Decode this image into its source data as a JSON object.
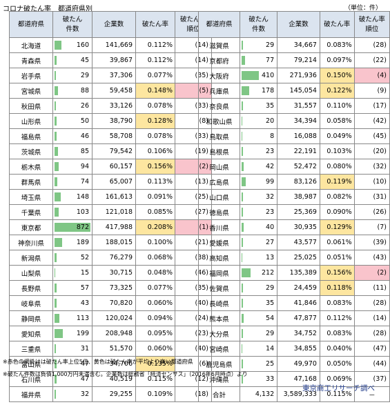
{
  "title": "コロナ破たん率　都道府県別",
  "unit": "（単位：件）",
  "headers": {
    "pref": "都道府県",
    "count_line1": "破たん",
    "count_line2": "件数",
    "companies": "企業数",
    "rate": "破たん率",
    "rank_line1": "破たん率",
    "rank_line2": "順位"
  },
  "colors": {
    "bar": "#7fc685",
    "yellow": "#fde6a0",
    "pink": "#f9c4cc",
    "header_bg": "#dbe4ef"
  },
  "left_rows": [
    {
      "pref": "北海道",
      "count": "160",
      "companies": "141,669",
      "rate": "0.112%",
      "rank": "(14)",
      "hl": ""
    },
    {
      "pref": "青森県",
      "count": "45",
      "companies": "39,867",
      "rate": "0.112%",
      "rank": "(14)",
      "hl": ""
    },
    {
      "pref": "岩手県",
      "count": "29",
      "companies": "37,306",
      "rate": "0.077%",
      "rank": "(35)",
      "hl": ""
    },
    {
      "pref": "宮城県",
      "count": "88",
      "companies": "59,458",
      "rate": "0.148%",
      "rank": "(5)",
      "hl": "hy"
    },
    {
      "pref": "秋田県",
      "count": "26",
      "companies": "33,126",
      "rate": "0.078%",
      "rank": "(33)",
      "hl": ""
    },
    {
      "pref": "山形県",
      "count": "50",
      "companies": "38,790",
      "rate": "0.128%",
      "rank": "(8)",
      "hl": "y"
    },
    {
      "pref": "福島県",
      "count": "46",
      "companies": "58,708",
      "rate": "0.078%",
      "rank": "(33)",
      "hl": ""
    },
    {
      "pref": "茨城県",
      "count": "85",
      "companies": "79,542",
      "rate": "0.106%",
      "rank": "(19)",
      "hl": ""
    },
    {
      "pref": "栃木県",
      "count": "94",
      "companies": "60,157",
      "rate": "0.156%",
      "rank": "(2)",
      "hl": "hy"
    },
    {
      "pref": "群馬県",
      "count": "74",
      "companies": "65,007",
      "rate": "0.113%",
      "rank": "(13)",
      "hl": ""
    },
    {
      "pref": "埼玉県",
      "count": "148",
      "companies": "161,613",
      "rate": "0.091%",
      "rank": "(25)",
      "hl": ""
    },
    {
      "pref": "千葉県",
      "count": "103",
      "companies": "121,018",
      "rate": "0.085%",
      "rank": "(27)",
      "hl": ""
    },
    {
      "pref": "東京都",
      "count": "872",
      "companies": "417,988",
      "rate": "0.208%",
      "rank": "(1)",
      "hl": "hy"
    },
    {
      "pref": "神奈川県",
      "count": "189",
      "companies": "188,015",
      "rate": "0.100%",
      "rank": "(21)",
      "hl": ""
    },
    {
      "pref": "新潟県",
      "count": "52",
      "companies": "76,279",
      "rate": "0.068%",
      "rank": "(38)",
      "hl": ""
    },
    {
      "pref": "山梨県",
      "count": "15",
      "companies": "30,715",
      "rate": "0.048%",
      "rank": "(46)",
      "hl": ""
    },
    {
      "pref": "長野県",
      "count": "57",
      "companies": "73,325",
      "rate": "0.077%",
      "rank": "(35)",
      "hl": ""
    },
    {
      "pref": "岐阜県",
      "count": "43",
      "companies": "70,820",
      "rate": "0.060%",
      "rank": "(40)",
      "hl": ""
    },
    {
      "pref": "静岡県",
      "count": "113",
      "companies": "120,024",
      "rate": "0.094%",
      "rank": "(24)",
      "hl": ""
    },
    {
      "pref": "愛知県",
      "count": "199",
      "companies": "208,948",
      "rate": "0.095%",
      "rank": "(23)",
      "hl": ""
    },
    {
      "pref": "三重県",
      "count": "31",
      "companies": "51,570",
      "rate": "0.060%",
      "rank": "(40)",
      "hl": ""
    },
    {
      "pref": "富山県",
      "count": "47",
      "companies": "34,706",
      "rate": "0.135%",
      "rank": "(6)",
      "hl": "y"
    },
    {
      "pref": "石川県",
      "count": "47",
      "companies": "40,519",
      "rate": "0.115%",
      "rank": "(12)",
      "hl": ""
    },
    {
      "pref": "福井県",
      "count": "32",
      "companies": "29,255",
      "rate": "0.109%",
      "rank": "(18)",
      "hl": ""
    }
  ],
  "right_rows": [
    {
      "pref": "滋賀県",
      "count": "29",
      "companies": "34,667",
      "rate": "0.083%",
      "rank": "(28)",
      "hl": ""
    },
    {
      "pref": "京都府",
      "count": "77",
      "companies": "79,214",
      "rate": "0.097%",
      "rank": "(22)",
      "hl": ""
    },
    {
      "pref": "大阪府",
      "count": "410",
      "companies": "271,936",
      "rate": "0.150%",
      "rank": "(4)",
      "hl": "hy"
    },
    {
      "pref": "兵庫県",
      "count": "178",
      "companies": "145,054",
      "rate": "0.122%",
      "rank": "(9)",
      "hl": "y"
    },
    {
      "pref": "奈良県",
      "count": "35",
      "companies": "31,557",
      "rate": "0.110%",
      "rank": "(17)",
      "hl": ""
    },
    {
      "pref": "和歌山県",
      "count": "20",
      "companies": "34,394",
      "rate": "0.058%",
      "rank": "(42)",
      "hl": ""
    },
    {
      "pref": "鳥取県",
      "count": "8",
      "companies": "16,088",
      "rate": "0.049%",
      "rank": "(45)",
      "hl": ""
    },
    {
      "pref": "島根県",
      "count": "23",
      "companies": "22,191",
      "rate": "0.103%",
      "rank": "(20)",
      "hl": ""
    },
    {
      "pref": "岡山県",
      "count": "42",
      "companies": "52,472",
      "rate": "0.080%",
      "rank": "(32)",
      "hl": ""
    },
    {
      "pref": "広島県",
      "count": "99",
      "companies": "83,126",
      "rate": "0.119%",
      "rank": "(10)",
      "hl": "y"
    },
    {
      "pref": "山口県",
      "count": "32",
      "companies": "38,987",
      "rate": "0.082%",
      "rank": "(31)",
      "hl": ""
    },
    {
      "pref": "徳島県",
      "count": "23",
      "companies": "25,369",
      "rate": "0.090%",
      "rank": "(26)",
      "hl": ""
    },
    {
      "pref": "香川県",
      "count": "40",
      "companies": "30,935",
      "rate": "0.129%",
      "rank": "(7)",
      "hl": "y"
    },
    {
      "pref": "愛媛県",
      "count": "27",
      "companies": "43,577",
      "rate": "0.061%",
      "rank": "(39)",
      "hl": ""
    },
    {
      "pref": "高知県",
      "count": "13",
      "companies": "25,025",
      "rate": "0.051%",
      "rank": "(43)",
      "hl": ""
    },
    {
      "pref": "福岡県",
      "count": "212",
      "companies": "135,389",
      "rate": "0.156%",
      "rank": "(2)",
      "hl": "hy"
    },
    {
      "pref": "佐賀県",
      "count": "29",
      "companies": "24,459",
      "rate": "0.118%",
      "rank": "(11)",
      "hl": "y"
    },
    {
      "pref": "長崎県",
      "count": "35",
      "companies": "41,846",
      "rate": "0.083%",
      "rank": "(28)",
      "hl": ""
    },
    {
      "pref": "熊本県",
      "count": "54",
      "companies": "47,877",
      "rate": "0.112%",
      "rank": "(14)",
      "hl": ""
    },
    {
      "pref": "大分県",
      "count": "29",
      "companies": "34,752",
      "rate": "0.083%",
      "rank": "(28)",
      "hl": ""
    },
    {
      "pref": "宮崎県",
      "count": "14",
      "companies": "34,855",
      "rate": "0.040%",
      "rank": "(47)",
      "hl": ""
    },
    {
      "pref": "鹿児島県",
      "count": "25",
      "companies": "49,970",
      "rate": "0.050%",
      "rank": "(44)",
      "hl": ""
    },
    {
      "pref": "沖縄県",
      "count": "33",
      "companies": "47,168",
      "rate": "0.069%",
      "rank": "(37)",
      "hl": ""
    }
  ],
  "total": {
    "label": "合計",
    "count": "4,132",
    "companies": "3,589,333",
    "rate": "0.115%",
    "rank": "－"
  },
  "bar_max": 872,
  "notes": [
    "※赤色の網掛けは破たん率上位5位、黄色は破たん率が平均より高い都道府県",
    "※破たん件数は負債1,000万円未満含む。企業数は総務省「経済センサス」（2016年6月時点）より"
  ],
  "source": "東京商工リサーチ調べ"
}
